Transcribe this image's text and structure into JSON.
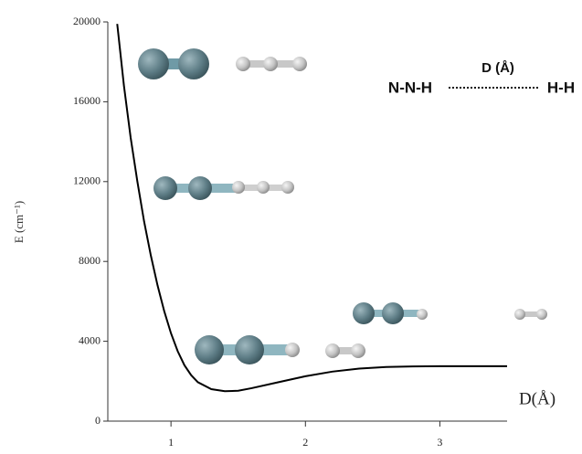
{
  "chart_data": {
    "type": "line",
    "y_label": "E (cm⁻¹)",
    "x_label": "D(Å)",
    "annotations": [
      "D (Å)",
      "N-N-H",
      "H-H"
    ],
    "x": [
      0.6,
      0.65,
      0.7,
      0.75,
      0.8,
      0.85,
      0.9,
      0.95,
      1.0,
      1.05,
      1.1,
      1.15,
      1.2,
      1.3,
      1.4,
      1.5,
      1.6,
      1.8,
      2.0,
      2.2,
      2.4,
      2.6,
      2.8,
      3.0,
      3.5
    ],
    "series": [
      {
        "color": "#000000",
        "values": [
          19900,
          16800,
          14200,
          12000,
          10000,
          8300,
          6800,
          5500,
          4400,
          3500,
          2800,
          2300,
          1950,
          1600,
          1500,
          1520,
          1650,
          1950,
          2250,
          2480,
          2630,
          2710,
          2740,
          2750,
          2750
        ]
      }
    ],
    "xlim": [
      0.53,
      3.5
    ],
    "xticks": [
      1,
      2,
      3
    ],
    "ylim": [
      0,
      20000
    ],
    "yticks": [
      0,
      4000,
      8000,
      12000,
      16000,
      20000
    ],
    "grid": false
  }
}
